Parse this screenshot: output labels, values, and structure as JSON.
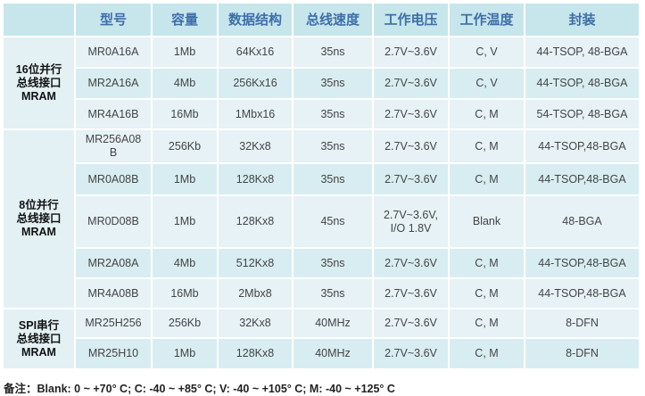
{
  "headers": [
    "",
    "型号",
    "容量",
    "数据结构",
    "总线速度",
    "工作电压",
    "工作温度",
    "封装"
  ],
  "groups": [
    {
      "label": [
        "16位并行",
        "总线接口",
        "MRAM"
      ],
      "rows": [
        [
          "MR0A16A",
          "1Mb",
          "64Kx16",
          "35ns",
          "2.7V~3.6V",
          "C, V",
          "44-TSOP, 48-BGA"
        ],
        [
          "MR2A16A",
          "4Mb",
          "256Kx16",
          "35ns",
          "2.7V~3.6V",
          "C, V",
          "44-TSOP, 48-BGA"
        ],
        [
          "MR4A16B",
          "16Mb",
          "1Mbx16",
          "35ns",
          "2.7V~3.6V",
          "C, M",
          "54-TSOP, 48-BGA"
        ]
      ]
    },
    {
      "label": [
        "8位并行",
        "总线接口",
        "MRAM"
      ],
      "rows": [
        [
          "MR256A08 B",
          "256Kb",
          "32Kx8",
          "35ns",
          "2.7V~3.6V",
          "C, M",
          "44-TSOP,48-BGA"
        ],
        [
          "MR0A08B",
          "1Mb",
          "128Kx8",
          "35ns",
          "2.7V~3.6V",
          "C, M",
          "44-TSOP,48-BGA"
        ],
        [
          "MR0D08B",
          "1Mb",
          "128Kx8",
          "45ns",
          "2.7V~3.6V, I/O 1.8V",
          "Blank",
          "48-BGA"
        ],
        [
          "MR2A08A",
          "4Mb",
          "512Kx8",
          "35ns",
          "2.7V~3.6V",
          "C, M",
          "44-TSOP,48-BGA"
        ],
        [
          "MR4A08B",
          "16Mb",
          "2Mbx8",
          "35ns",
          "2.7V~3.6V",
          "C, M",
          "44-TSOP,48-BGA"
        ]
      ]
    },
    {
      "label": [
        "SPI串行",
        "总线接口",
        "MRAM"
      ],
      "rows": [
        [
          "MR25H256",
          "256Kb",
          "32Kx8",
          "40MHz",
          "2.7V~3.6V",
          "C, M",
          "8-DFN"
        ],
        [
          "MR25H10",
          "1Mb",
          "128Kx8",
          "40MHz",
          "2.7V~3.6V",
          "C, M",
          "8-DFN"
        ]
      ]
    }
  ],
  "note": "备注：Blank: 0 ~ +70° C; C: -40 ~ +85° C; V: -40 ~ +105° C; M: -40 ~ +125° C"
}
